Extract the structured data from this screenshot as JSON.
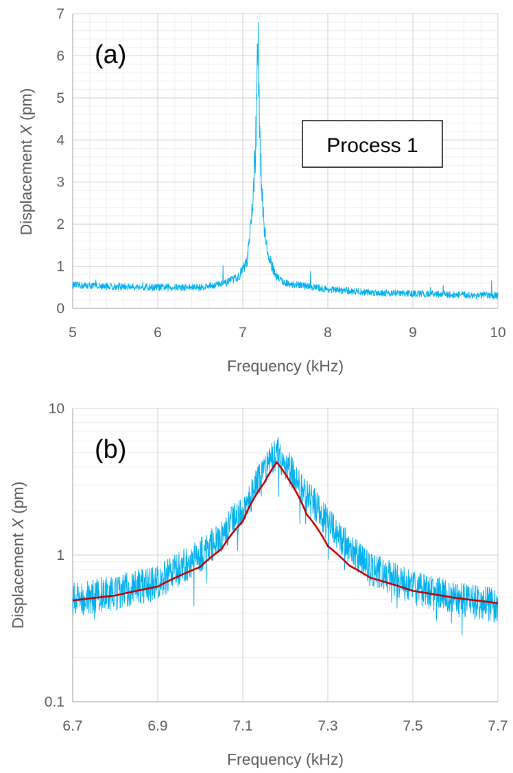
{
  "colors": {
    "data_trace": "#00B0F0",
    "fit_curve": "#C00000",
    "grid_major": "#D9D9D9",
    "grid_minor": "#EFEFEF",
    "axis_text": "#595959",
    "label_text": "#000000"
  },
  "chart_data": [
    {
      "type": "line",
      "panel_label": "(a)",
      "annotation": "Process 1",
      "xlabel": "Frequency (kHz)",
      "ylabel_parts": [
        "Displacement ",
        "X",
        " (pm)"
      ],
      "xlim": [
        5,
        10
      ],
      "ylim": [
        0,
        7
      ],
      "xticks": [
        5,
        6,
        7,
        8,
        9,
        10
      ],
      "yticks": [
        0,
        1,
        2,
        3,
        4,
        5,
        6,
        7
      ],
      "y_scale": "linear",
      "grid": true,
      "minor_grid": true,
      "series": [
        {
          "color": "#00B0F0",
          "x": [
            5.0,
            5.5,
            6.0,
            6.5,
            6.8,
            6.95,
            7.05,
            7.1,
            7.15,
            7.18,
            7.2,
            7.25,
            7.3,
            7.4,
            7.5,
            8.0,
            8.5,
            9.0,
            9.5,
            10.0
          ],
          "y": [
            0.55,
            0.52,
            0.5,
            0.5,
            0.6,
            0.75,
            1.1,
            2.0,
            3.8,
            6.3,
            3.8,
            2.0,
            1.2,
            0.75,
            0.6,
            0.45,
            0.38,
            0.35,
            0.32,
            0.3
          ]
        }
      ]
    },
    {
      "type": "line",
      "panel_label": "(b)",
      "xlabel": "Frequency (kHz)",
      "ylabel_parts": [
        "Displacement ",
        "X",
        " (pm)"
      ],
      "xlim": [
        6.7,
        7.7
      ],
      "ylim": [
        0.1,
        10
      ],
      "xticks": [
        "6.7",
        "6.9",
        "7.1",
        "7.3",
        "7.5",
        "7.7"
      ],
      "yticks": [
        "0.1",
        "1",
        "10"
      ],
      "y_scale": "log",
      "grid": true,
      "minor_grid": true,
      "series": [
        {
          "color": "#00B0F0",
          "x": [
            6.7,
            6.8,
            6.9,
            6.95,
            7.0,
            7.05,
            7.1,
            7.15,
            7.18,
            7.22,
            7.25,
            7.3,
            7.35,
            7.4,
            7.5,
            7.6,
            7.7
          ],
          "y": [
            0.5,
            0.55,
            0.65,
            0.8,
            1.0,
            1.3,
            2.0,
            3.5,
            5.0,
            3.5,
            2.5,
            1.6,
            1.1,
            0.8,
            0.6,
            0.5,
            0.45
          ]
        },
        {
          "color": "#C00000",
          "x": [
            6.7,
            6.8,
            6.9,
            7.0,
            7.05,
            7.1,
            7.15,
            7.18,
            7.21,
            7.25,
            7.3,
            7.35,
            7.4,
            7.5,
            7.6,
            7.7
          ],
          "y": [
            0.49,
            0.53,
            0.61,
            0.83,
            1.1,
            1.7,
            3.1,
            4.3,
            3.2,
            1.9,
            1.15,
            0.85,
            0.7,
            0.57,
            0.51,
            0.47
          ]
        }
      ]
    }
  ]
}
